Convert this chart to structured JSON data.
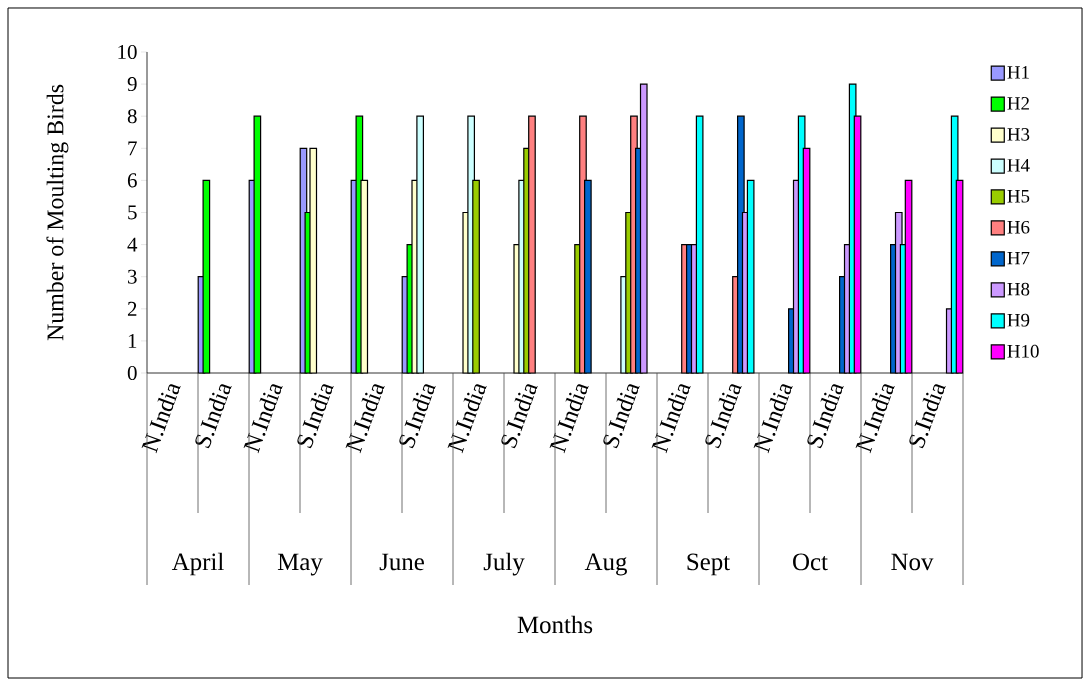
{
  "chart_data": {
    "type": "bar",
    "ylabel": "Number of Moulting Birds",
    "categories": [
      "N.India",
      "S.India",
      "N.India",
      "S.India",
      "N.India",
      "S.India",
      "N.India",
      "S.India",
      "N.India",
      "S.India",
      "N.India",
      "S.India",
      "N.India",
      "S.India",
      "N.India",
      "S.India"
    ],
    "annotations": [
      "April",
      "May",
      "June",
      "July",
      "Aug",
      "Sept",
      "Oct",
      "Nov",
      "Months"
    ],
    "ylim": [
      0,
      10
    ],
    "yticks": [
      0,
      1,
      2,
      3,
      4,
      5,
      6,
      7,
      8,
      9,
      10
    ],
    "legend": "right",
    "grid": false,
    "series": [
      {
        "name": "H1",
        "color": "#9999ff",
        "values": [
          null,
          3,
          6,
          7,
          6,
          3,
          null,
          null,
          null,
          null,
          null,
          null,
          null,
          null,
          null,
          null
        ]
      },
      {
        "name": "H2",
        "color": "#00ff00",
        "values": [
          null,
          6,
          8,
          5,
          8,
          4,
          null,
          null,
          null,
          null,
          null,
          null,
          null,
          null,
          null,
          null
        ]
      },
      {
        "name": "H3",
        "color": "#ffffcc",
        "values": [
          null,
          null,
          null,
          7,
          6,
          6,
          5,
          4,
          null,
          null,
          null,
          null,
          null,
          null,
          null,
          null
        ]
      },
      {
        "name": "H4",
        "color": "#ccffff",
        "values": [
          null,
          null,
          null,
          null,
          null,
          8,
          8,
          6,
          null,
          3,
          null,
          null,
          null,
          null,
          null,
          null
        ]
      },
      {
        "name": "H5",
        "color": "#99cc00",
        "values": [
          null,
          null,
          null,
          null,
          null,
          null,
          6,
          7,
          4,
          5,
          null,
          null,
          null,
          null,
          null,
          null
        ]
      },
      {
        "name": "H6",
        "color": "#ff8080",
        "values": [
          null,
          null,
          null,
          null,
          null,
          null,
          null,
          8,
          8,
          8,
          4,
          3,
          null,
          null,
          null,
          null
        ]
      },
      {
        "name": "H7",
        "color": "#0066cc",
        "values": [
          null,
          null,
          null,
          null,
          null,
          null,
          null,
          null,
          6,
          7,
          4,
          8,
          2,
          3,
          4,
          null
        ]
      },
      {
        "name": "H8",
        "color": "#cc99ff",
        "values": [
          null,
          null,
          null,
          null,
          null,
          null,
          null,
          null,
          null,
          9,
          4,
          5,
          6,
          4,
          5,
          2
        ]
      },
      {
        "name": "H9",
        "color": "#00ffff",
        "values": [
          null,
          null,
          null,
          null,
          null,
          null,
          null,
          null,
          null,
          null,
          8,
          6,
          8,
          9,
          4,
          8
        ]
      },
      {
        "name": "H10",
        "color": "#ff00ff",
        "values": [
          null,
          null,
          null,
          null,
          null,
          null,
          null,
          null,
          null,
          null,
          null,
          null,
          7,
          8,
          6,
          6
        ]
      }
    ]
  }
}
